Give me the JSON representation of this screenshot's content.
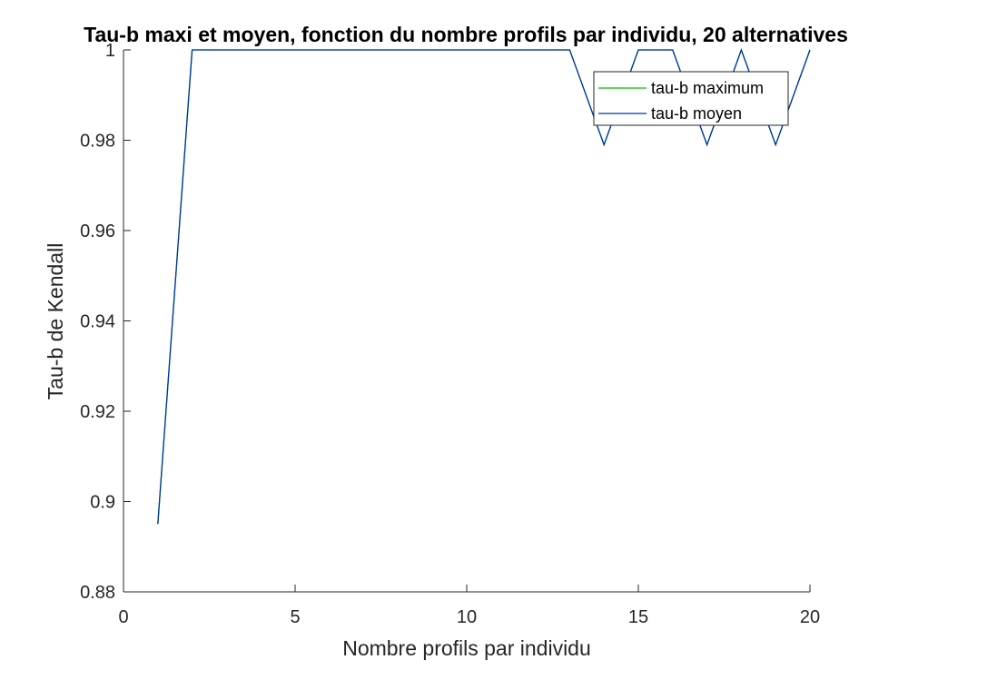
{
  "chart_data": {
    "type": "line",
    "title": "Tau-b maxi et moyen, fonction du nombre profils par individu, 20 alternatives",
    "xlabel": "Nombre profils par individu",
    "ylabel": "Tau-b de Kendall",
    "xlim": [
      0,
      20
    ],
    "ylim": [
      0.88,
      1
    ],
    "xticks": [
      "0",
      "5",
      "10",
      "15",
      "20"
    ],
    "yticks": [
      "0.88",
      "0.9",
      "0.92",
      "0.94",
      "0.96",
      "0.98",
      "1"
    ],
    "grid": false,
    "legend_position": "top-right",
    "x": [
      1,
      2,
      3,
      4,
      5,
      6,
      7,
      8,
      9,
      10,
      11,
      12,
      13,
      14,
      15,
      16,
      17,
      18,
      19,
      20
    ],
    "series": [
      {
        "name": "tau-b maximum",
        "color": "#00c000",
        "values": [
          0.895,
          1,
          1,
          1,
          1,
          1,
          1,
          1,
          1,
          1,
          1,
          1,
          1,
          0.979,
          1,
          1,
          0.979,
          1,
          0.979,
          1
        ]
      },
      {
        "name": "tau-b moyen",
        "color": "#0033aa",
        "values": [
          0.895,
          1,
          1,
          1,
          1,
          1,
          1,
          1,
          1,
          1,
          1,
          1,
          1,
          0.979,
          1,
          1,
          0.979,
          1,
          0.979,
          1
        ]
      }
    ]
  }
}
